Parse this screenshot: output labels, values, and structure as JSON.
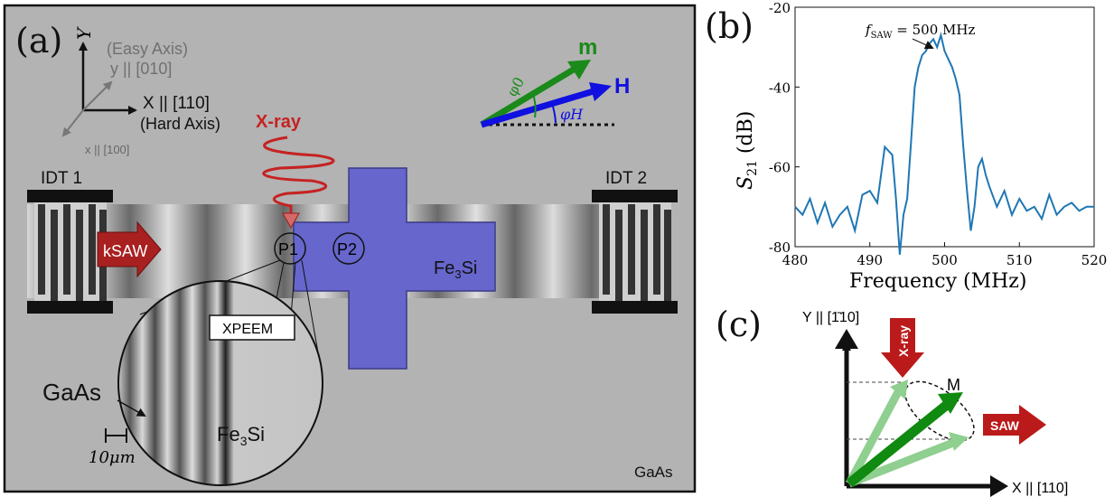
{
  "panel_a": {
    "label": "(a)",
    "axes": {
      "Y": "Y",
      "easy_axis": "(Easy Axis)",
      "y_axis": "y || [010]",
      "X_axis": "X || [110]",
      "hard_axis": "(Hard Axis)",
      "x_axis": "x || [100]"
    },
    "xray_label": "X-ray",
    "vectors": {
      "m": "m",
      "H": "H",
      "phi0": "φ0",
      "phiH": "φH"
    },
    "idt1": "IDT 1",
    "idt2": "IDT 2",
    "ksaw": "kSAW",
    "p1": "P1",
    "p2": "P2",
    "fe3si_label": "Fe3Si",
    "xpeem": "XPEEM",
    "gaas_inset": "GaAs",
    "fe3si_inset": "Fe3Si",
    "scale": "10μm",
    "gaas_corner": "GaAs",
    "colors": {
      "substrate": "#b3b3b3",
      "fe3si": "#6666cc",
      "xray": "#cc2222",
      "m": "#1a8a1a",
      "H": "#1010e0",
      "idt": "#111111",
      "ksaw": "#a82020"
    }
  },
  "panel_b": {
    "label": "(b)",
    "annotation": "fSAW = 500 MHz",
    "chart_data": {
      "type": "line",
      "xlabel": "Frequency (MHz)",
      "ylabel": "S21 (dB)",
      "xlim": [
        480,
        520
      ],
      "ylim": [
        -80,
        -20
      ],
      "xticks": [
        480,
        490,
        500,
        510,
        520
      ],
      "yticks": [
        -20,
        -40,
        -60,
        -80
      ],
      "series": [
        {
          "color": "#1f77b4",
          "x": [
            480,
            481,
            482,
            483,
            484,
            485,
            486,
            487,
            488,
            489,
            490,
            491,
            492,
            493,
            493.5,
            494,
            494.5,
            495,
            495.5,
            496,
            496.5,
            497,
            497.5,
            498,
            498.5,
            499,
            499.5,
            500,
            500.5,
            501,
            501.5,
            502,
            502.5,
            503,
            503.5,
            504,
            504.5,
            505,
            505.5,
            506,
            507,
            508,
            509,
            510,
            511,
            512,
            513,
            514,
            515,
            516,
            517,
            518,
            519,
            520
          ],
          "y": [
            -70,
            -72,
            -68,
            -74,
            -69,
            -75,
            -72,
            -70,
            -76,
            -67,
            -66,
            -69,
            -55,
            -57,
            -68,
            -82,
            -72,
            -68,
            -54,
            -40,
            -35,
            -32,
            -31,
            -29,
            -28,
            -30,
            -27,
            -31,
            -33,
            -35,
            -38,
            -42,
            -55,
            -66,
            -76,
            -70,
            -60,
            -58,
            -62,
            -65,
            -70,
            -66,
            -72,
            -68,
            -71,
            -70,
            -73,
            -67,
            -72,
            -70,
            -69,
            -71,
            -70,
            -70
          ]
        }
      ]
    }
  },
  "panel_c": {
    "label": "(c)",
    "y_axis": "Y || [1̄10]",
    "x_axis": "X || [110]",
    "xray": "X-ray",
    "saw": "SAW",
    "m": "M"
  }
}
